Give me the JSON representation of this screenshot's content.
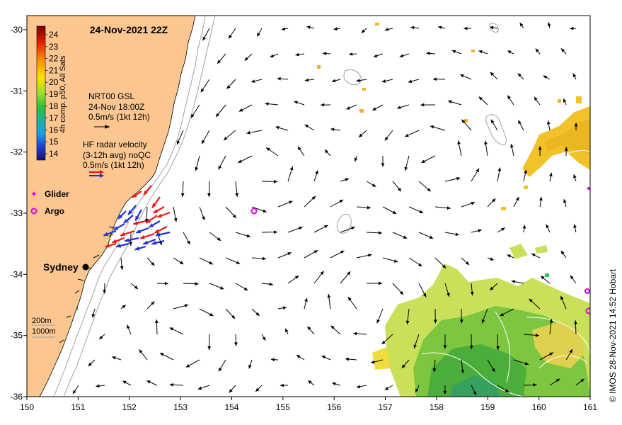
{
  "title": "24-Nov-2021 22Z",
  "colorbar": {
    "label": "4h comp. p50, All Sats",
    "ticks": [
      "24",
      "23",
      "22",
      "21",
      "20",
      "19",
      "18",
      "17",
      "16",
      "15",
      "14"
    ]
  },
  "legend": {
    "gsl": [
      "NRT00 GSL",
      "24-Nov 18:00Z",
      "0.5m/s (1kt 12h)"
    ],
    "hf": [
      "HF radar velocity",
      "(3-12h avg) noQC",
      "0.5m/s (1kt 12h)"
    ],
    "glider": "Glider",
    "argo": "Argo",
    "bathy": [
      "200m",
      "1000m"
    ]
  },
  "place": "Sydney",
  "credit": "© IMOS 28-Nov-2021 14:52 Hobart",
  "x_ticks": [
    "150",
    "151",
    "152",
    "153",
    "154",
    "155",
    "156",
    "157",
    "158",
    "159",
    "160",
    "161"
  ],
  "y_ticks": [
    "-30",
    "-31",
    "-32",
    "-33",
    "-34",
    "-35",
    "-36"
  ],
  "colors": {
    "land": "#fbc690",
    "arrow": "#000000",
    "hf_red": "#e41a1c",
    "hf_blue": "#1f2fd8",
    "marker": "#e000e0",
    "bathy": "#a0a0a0"
  }
}
